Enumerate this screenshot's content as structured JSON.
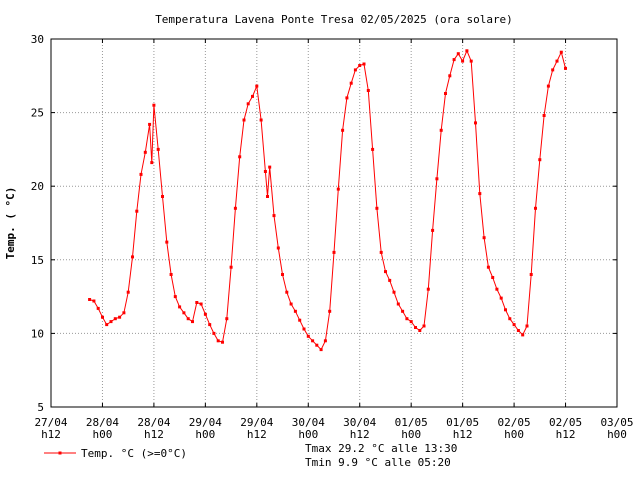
{
  "chart_data": {
    "type": "line",
    "title": "Temperatura Lavena Ponte Tresa 02/05/2025 (ora solare)",
    "xlabel": "",
    "ylabel": "Temp. ( °C)",
    "ylim": [
      5,
      30
    ],
    "yticks": [
      5,
      10,
      15,
      20,
      25,
      30
    ],
    "xlim": [
      "2025-04-27 12:00",
      "2025-05-03 00:00"
    ],
    "xticks": [
      {
        "at": "2025-04-27 12:00",
        "l1": "27/04",
        "l2": "h12"
      },
      {
        "at": "2025-04-28 00:00",
        "l1": "28/04",
        "l2": "h00"
      },
      {
        "at": "2025-04-28 12:00",
        "l1": "28/04",
        "l2": "h12"
      },
      {
        "at": "2025-04-29 00:00",
        "l1": "29/04",
        "l2": "h00"
      },
      {
        "at": "2025-04-29 12:00",
        "l1": "29/04",
        "l2": "h12"
      },
      {
        "at": "2025-04-30 00:00",
        "l1": "30/04",
        "l2": "h00"
      },
      {
        "at": "2025-04-30 12:00",
        "l1": "30/04",
        "l2": "h12"
      },
      {
        "at": "2025-05-01 00:00",
        "l1": "01/05",
        "l2": "h00"
      },
      {
        "at": "2025-05-01 12:00",
        "l1": "01/05",
        "l2": "h12"
      },
      {
        "at": "2025-05-02 00:00",
        "l1": "02/05",
        "l2": "h00"
      },
      {
        "at": "2025-05-02 12:00",
        "l1": "02/05",
        "l2": "h12"
      },
      {
        "at": "2025-05-03 00:00",
        "l1": "03/05",
        "l2": "h00"
      }
    ],
    "grid": true,
    "legend_position": "bottom-left",
    "series": [
      {
        "name": "Temp. °C (>=0°C)",
        "color": "#ff0000",
        "points": [
          [
            "2025-04-27 21:00",
            12.3
          ],
          [
            "2025-04-27 22:00",
            12.2
          ],
          [
            "2025-04-27 23:00",
            11.7
          ],
          [
            "2025-04-28 00:00",
            11.1
          ],
          [
            "2025-04-28 01:00",
            10.6
          ],
          [
            "2025-04-28 02:00",
            10.8
          ],
          [
            "2025-04-28 03:00",
            11.0
          ],
          [
            "2025-04-28 04:00",
            11.1
          ],
          [
            "2025-04-28 05:00",
            11.4
          ],
          [
            "2025-04-28 06:00",
            12.8
          ],
          [
            "2025-04-28 07:00",
            15.2
          ],
          [
            "2025-04-28 08:00",
            18.3
          ],
          [
            "2025-04-28 09:00",
            20.8
          ],
          [
            "2025-04-28 10:00",
            22.3
          ],
          [
            "2025-04-28 11:00",
            24.2
          ],
          [
            "2025-04-28 11:30",
            21.6
          ],
          [
            "2025-04-28 12:00",
            25.5
          ],
          [
            "2025-04-28 13:00",
            22.5
          ],
          [
            "2025-04-28 14:00",
            19.3
          ],
          [
            "2025-04-28 15:00",
            16.2
          ],
          [
            "2025-04-28 16:00",
            14.0
          ],
          [
            "2025-04-28 17:00",
            12.5
          ],
          [
            "2025-04-28 18:00",
            11.8
          ],
          [
            "2025-04-28 19:00",
            11.4
          ],
          [
            "2025-04-28 20:00",
            11.0
          ],
          [
            "2025-04-28 21:00",
            10.8
          ],
          [
            "2025-04-28 22:00",
            12.1
          ],
          [
            "2025-04-28 23:00",
            12.0
          ],
          [
            "2025-04-29 00:00",
            11.3
          ],
          [
            "2025-04-29 01:00",
            10.6
          ],
          [
            "2025-04-29 02:00",
            10.0
          ],
          [
            "2025-04-29 03:00",
            9.5
          ],
          [
            "2025-04-29 04:00",
            9.4
          ],
          [
            "2025-04-29 05:00",
            11.0
          ],
          [
            "2025-04-29 06:00",
            14.5
          ],
          [
            "2025-04-29 07:00",
            18.5
          ],
          [
            "2025-04-29 08:00",
            22.0
          ],
          [
            "2025-04-29 09:00",
            24.5
          ],
          [
            "2025-04-29 10:00",
            25.6
          ],
          [
            "2025-04-29 11:00",
            26.1
          ],
          [
            "2025-04-29 12:00",
            26.8
          ],
          [
            "2025-04-29 13:00",
            24.5
          ],
          [
            "2025-04-29 14:00",
            21.0
          ],
          [
            "2025-04-29 14:30",
            19.3
          ],
          [
            "2025-04-29 15:00",
            21.3
          ],
          [
            "2025-04-29 16:00",
            18.0
          ],
          [
            "2025-04-29 17:00",
            15.8
          ],
          [
            "2025-04-29 18:00",
            14.0
          ],
          [
            "2025-04-29 19:00",
            12.8
          ],
          [
            "2025-04-29 20:00",
            12.0
          ],
          [
            "2025-04-29 21:00",
            11.5
          ],
          [
            "2025-04-29 22:00",
            10.9
          ],
          [
            "2025-04-29 23:00",
            10.3
          ],
          [
            "2025-04-30 00:00",
            9.8
          ],
          [
            "2025-04-30 01:00",
            9.5
          ],
          [
            "2025-04-30 02:00",
            9.2
          ],
          [
            "2025-04-30 03:00",
            8.9
          ],
          [
            "2025-04-30 04:00",
            9.5
          ],
          [
            "2025-04-30 05:00",
            11.5
          ],
          [
            "2025-04-30 06:00",
            15.5
          ],
          [
            "2025-04-30 07:00",
            19.8
          ],
          [
            "2025-04-30 08:00",
            23.8
          ],
          [
            "2025-04-30 09:00",
            26.0
          ],
          [
            "2025-04-30 10:00",
            27.0
          ],
          [
            "2025-04-30 11:00",
            27.9
          ],
          [
            "2025-04-30 12:00",
            28.2
          ],
          [
            "2025-04-30 13:00",
            28.3
          ],
          [
            "2025-04-30 14:00",
            26.5
          ],
          [
            "2025-04-30 15:00",
            22.5
          ],
          [
            "2025-04-30 16:00",
            18.5
          ],
          [
            "2025-04-30 17:00",
            15.5
          ],
          [
            "2025-04-30 18:00",
            14.2
          ],
          [
            "2025-04-30 19:00",
            13.6
          ],
          [
            "2025-04-30 20:00",
            12.8
          ],
          [
            "2025-04-30 21:00",
            12.0
          ],
          [
            "2025-04-30 22:00",
            11.5
          ],
          [
            "2025-04-30 23:00",
            11.0
          ],
          [
            "2025-05-01 00:00",
            10.8
          ],
          [
            "2025-05-01 01:00",
            10.4
          ],
          [
            "2025-05-01 02:00",
            10.2
          ],
          [
            "2025-05-01 03:00",
            10.5
          ],
          [
            "2025-05-01 04:00",
            13.0
          ],
          [
            "2025-05-01 05:00",
            17.0
          ],
          [
            "2025-05-01 06:00",
            20.5
          ],
          [
            "2025-05-01 07:00",
            23.8
          ],
          [
            "2025-05-01 08:00",
            26.3
          ],
          [
            "2025-05-01 09:00",
            27.5
          ],
          [
            "2025-05-01 10:00",
            28.6
          ],
          [
            "2025-05-01 11:00",
            29.0
          ],
          [
            "2025-05-01 12:00",
            28.5
          ],
          [
            "2025-05-01 13:00",
            29.2
          ],
          [
            "2025-05-01 14:00",
            28.5
          ],
          [
            "2025-05-01 15:00",
            24.3
          ],
          [
            "2025-05-01 16:00",
            19.5
          ],
          [
            "2025-05-01 17:00",
            16.5
          ],
          [
            "2025-05-01 18:00",
            14.5
          ],
          [
            "2025-05-01 19:00",
            13.8
          ],
          [
            "2025-05-01 20:00",
            13.0
          ],
          [
            "2025-05-01 21:00",
            12.4
          ],
          [
            "2025-05-01 22:00",
            11.6
          ],
          [
            "2025-05-01 23:00",
            11.0
          ],
          [
            "2025-05-02 00:00",
            10.6
          ],
          [
            "2025-05-02 01:00",
            10.2
          ],
          [
            "2025-05-02 02:00",
            9.9
          ],
          [
            "2025-05-02 03:00",
            10.5
          ],
          [
            "2025-05-02 04:00",
            14.0
          ],
          [
            "2025-05-02 05:00",
            18.5
          ],
          [
            "2025-05-02 06:00",
            21.8
          ],
          [
            "2025-05-02 07:00",
            24.8
          ],
          [
            "2025-05-02 08:00",
            26.8
          ],
          [
            "2025-05-02 09:00",
            27.9
          ],
          [
            "2025-05-02 10:00",
            28.5
          ],
          [
            "2025-05-02 11:00",
            29.1
          ],
          [
            "2025-05-02 12:00",
            28.0
          ]
        ]
      }
    ]
  },
  "stats": {
    "tmax": "Tmax 29.2 °C alle 13:30",
    "tmin": "Tmin 9.9 °C alle 05:20"
  }
}
